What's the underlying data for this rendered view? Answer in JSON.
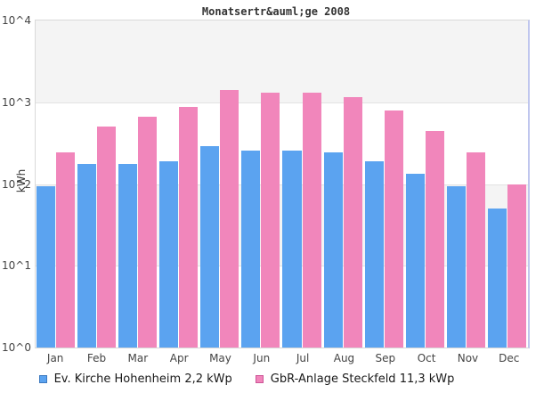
{
  "chart_data": {
    "type": "bar",
    "title": "Monatsertr&auml;ge 2008",
    "xlabel": "",
    "ylabel": "kWh",
    "y_scale": "log",
    "ylim": [
      1,
      10000
    ],
    "ytick_labels": [
      "10^4",
      "10^3",
      "10^2",
      "10^1",
      "10^0"
    ],
    "grid": "horizontal-decade-lines, alternating gray/white decade bands",
    "legend_position": "bottom",
    "categories": [
      "Jan",
      "Feb",
      "Mar",
      "Apr",
      "May",
      "Jun",
      "Jul",
      "Aug",
      "Sep",
      "Oct",
      "Nov",
      "Dec"
    ],
    "series": [
      {
        "name": "Ev. Kirche Hohenheim 2,2 kWp",
        "color": "#5ba3f0",
        "values": [
          94,
          176,
          178,
          190,
          290,
          255,
          255,
          244,
          188,
          133,
          95,
          50
        ]
      },
      {
        "name": "GbR-Anlage Steckfeld 11,3 kWp",
        "color": "#f186bb",
        "values": [
          244,
          500,
          665,
          880,
          1425,
          1310,
          1310,
          1155,
          790,
          445,
          242,
          98
        ]
      }
    ],
    "colors": {
      "band_gray": "#f4f4f4",
      "gridline": "#e2e2e2",
      "border": "#d9d9d9",
      "border_right": "#bfc6ee",
      "legend_swatch_border_blue": "#3c79c0",
      "legend_swatch_border_pink": "#cc5597"
    }
  }
}
